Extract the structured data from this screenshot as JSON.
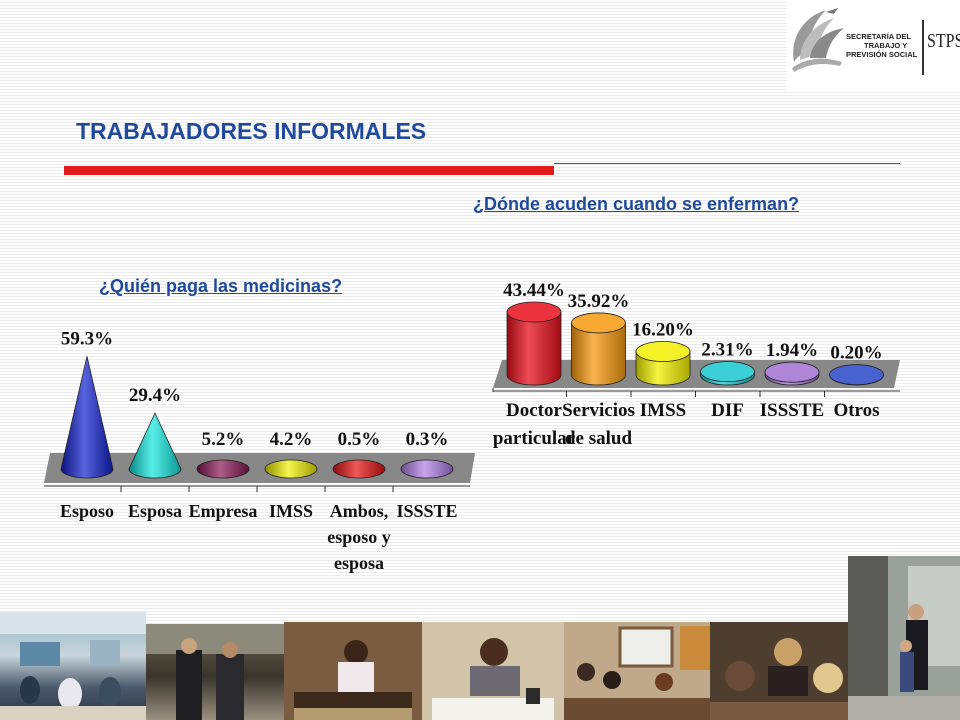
{
  "header": {
    "logo": {
      "name": "stps-logo",
      "line1": "SECRETARÍA DEL",
      "line2": "TRABAJO Y",
      "line3": "PREVISIÓN SOCIAL",
      "acronym": "STPS"
    },
    "title": "TRABAJADORES INFORMALES"
  },
  "colors": {
    "title_blue": "#1f4a9c",
    "accent_red": "#e21a1a"
  },
  "chart_data": [
    {
      "type": "bar",
      "title": "¿Dónde acuden cuando se enferman?",
      "categories": [
        "Doctor particular",
        "Servicios de salud",
        "IMSS",
        "DIF",
        "ISSSTE",
        "Otros"
      ],
      "category_lines": [
        [
          "Doctor",
          "particular"
        ],
        [
          "Servicios",
          "de salud"
        ],
        [
          "IMSS"
        ],
        [
          "DIF"
        ],
        [
          "ISSSTE"
        ],
        [
          "Otros"
        ]
      ],
      "values": [
        43.44,
        35.92,
        16.2,
        2.31,
        1.94,
        0.2
      ],
      "value_labels": [
        "43.44%",
        "35.92%",
        "16.20%",
        "2.31%",
        "1.94%",
        "0.20%"
      ],
      "colors": [
        "#e8101c",
        "#f59a10",
        "#f2f000",
        "#18c8d0",
        "#a070d0",
        "#2848c8"
      ],
      "grid": false
    },
    {
      "type": "bar",
      "title": "¿Quién paga las medicinas?",
      "categories": [
        "Esposo",
        "Esposa",
        "Empresa",
        "IMSS",
        "Ambos, esposo y esposa",
        "ISSSTE"
      ],
      "category_lines": [
        [
          "Esposo"
        ],
        [
          "Esposa"
        ],
        [
          "Empresa"
        ],
        [
          "IMSS"
        ],
        [
          "Ambos,",
          "esposo y",
          "esposa"
        ],
        [
          "ISSSTE"
        ]
      ],
      "values": [
        59.3,
        29.4,
        5.2,
        4.2,
        0.5,
        0.3
      ],
      "value_labels": [
        "59.3%",
        "29.4%",
        "5.2%",
        "4.2%",
        "0.5%",
        "0.3%"
      ],
      "colors": [
        "#1020d0",
        "#10e8e0",
        "#8a1858",
        "#f0f000",
        "#e81010",
        "#b080e8"
      ],
      "grid": false
    }
  ],
  "photos": [
    {
      "name": "photo-classroom"
    },
    {
      "name": "photo-businessmen"
    },
    {
      "name": "photo-woman-weaving"
    },
    {
      "name": "photo-woman-writing"
    },
    {
      "name": "photo-meeting"
    },
    {
      "name": "photo-women-desk"
    },
    {
      "name": "photo-family-door"
    }
  ]
}
